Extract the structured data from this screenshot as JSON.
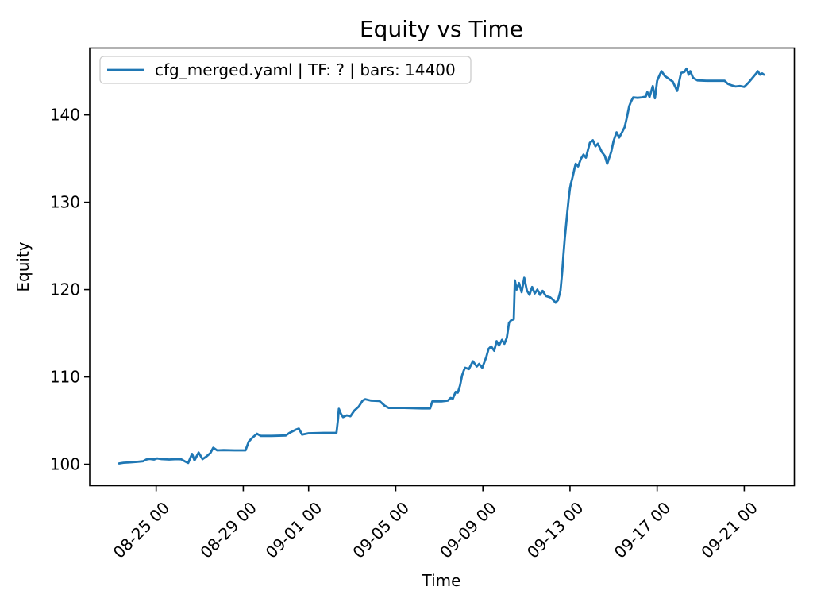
{
  "chart_data": {
    "type": "line",
    "title": "Equity vs Time",
    "xlabel": "Time",
    "ylabel": "Equity",
    "grid": false,
    "legend": {
      "position": "upper left",
      "entries": [
        {
          "label": "cfg_merged.yaml | TF: ? | bars: 14400",
          "color": "#1f77b4"
        }
      ]
    },
    "x_unit": "days since 08-25 00:00",
    "xlim": [
      -3.05,
      29.3
    ],
    "ylim": [
      97.55,
      147.65
    ],
    "yticks": [
      100,
      110,
      120,
      130,
      140
    ],
    "xticks": [
      {
        "t": 0,
        "label": "08-25 00"
      },
      {
        "t": 4,
        "label": "08-29 00"
      },
      {
        "t": 7,
        "label": "09-01 00"
      },
      {
        "t": 11,
        "label": "09-05 00"
      },
      {
        "t": 15,
        "label": "09-09 00"
      },
      {
        "t": 19,
        "label": "09-13 00"
      },
      {
        "t": 23,
        "label": "09-17 00"
      },
      {
        "t": 27,
        "label": "09-21 00"
      }
    ],
    "series": [
      {
        "name": "cfg_merged.yaml | TF: ? | bars: 14400",
        "color": "#1f77b4",
        "points": [
          [
            -1.7,
            100.1
          ],
          [
            -1.5,
            100.18
          ],
          [
            -1.2,
            100.22
          ],
          [
            -0.9,
            100.28
          ],
          [
            -0.6,
            100.35
          ],
          [
            -0.45,
            100.55
          ],
          [
            -0.3,
            100.62
          ],
          [
            -0.1,
            100.55
          ],
          [
            0.05,
            100.68
          ],
          [
            0.25,
            100.6
          ],
          [
            0.6,
            100.55
          ],
          [
            0.95,
            100.6
          ],
          [
            1.15,
            100.58
          ],
          [
            1.35,
            100.3
          ],
          [
            1.47,
            100.15
          ],
          [
            1.65,
            101.2
          ],
          [
            1.76,
            100.45
          ],
          [
            1.95,
            101.35
          ],
          [
            2.13,
            100.6
          ],
          [
            2.31,
            100.9
          ],
          [
            2.49,
            101.3
          ],
          [
            2.62,
            101.9
          ],
          [
            2.8,
            101.6
          ],
          [
            3.1,
            101.62
          ],
          [
            3.6,
            101.6
          ],
          [
            4.1,
            101.6
          ],
          [
            4.25,
            102.6
          ],
          [
            4.4,
            103.0
          ],
          [
            4.63,
            103.5
          ],
          [
            4.8,
            103.25
          ],
          [
            5.3,
            103.25
          ],
          [
            5.95,
            103.3
          ],
          [
            6.12,
            103.6
          ],
          [
            6.4,
            103.95
          ],
          [
            6.55,
            104.1
          ],
          [
            6.7,
            103.4
          ],
          [
            7.0,
            103.55
          ],
          [
            7.7,
            103.6
          ],
          [
            8.28,
            103.6
          ],
          [
            8.35,
            105.2
          ],
          [
            8.39,
            106.35
          ],
          [
            8.48,
            105.8
          ],
          [
            8.58,
            105.4
          ],
          [
            8.75,
            105.6
          ],
          [
            8.92,
            105.5
          ],
          [
            9.1,
            106.15
          ],
          [
            9.3,
            106.6
          ],
          [
            9.48,
            107.3
          ],
          [
            9.6,
            107.45
          ],
          [
            9.85,
            107.3
          ],
          [
            10.25,
            107.25
          ],
          [
            10.5,
            106.7
          ],
          [
            10.68,
            106.45
          ],
          [
            11.4,
            106.45
          ],
          [
            12.2,
            106.4
          ],
          [
            12.58,
            106.4
          ],
          [
            12.68,
            107.2
          ],
          [
            13.1,
            107.2
          ],
          [
            13.4,
            107.3
          ],
          [
            13.52,
            107.6
          ],
          [
            13.62,
            107.5
          ],
          [
            13.75,
            108.3
          ],
          [
            13.85,
            108.2
          ],
          [
            13.95,
            109.0
          ],
          [
            14.05,
            110.2
          ],
          [
            14.12,
            110.7
          ],
          [
            14.18,
            111.05
          ],
          [
            14.36,
            110.9
          ],
          [
            14.54,
            111.8
          ],
          [
            14.72,
            111.2
          ],
          [
            14.83,
            111.5
          ],
          [
            14.97,
            111.05
          ],
          [
            15.16,
            112.3
          ],
          [
            15.26,
            113.2
          ],
          [
            15.38,
            113.5
          ],
          [
            15.52,
            113.0
          ],
          [
            15.63,
            114.1
          ],
          [
            15.74,
            113.6
          ],
          [
            15.88,
            114.25
          ],
          [
            15.99,
            113.8
          ],
          [
            16.1,
            114.5
          ],
          [
            16.2,
            116.2
          ],
          [
            16.3,
            116.5
          ],
          [
            16.42,
            116.6
          ],
          [
            16.47,
            121.05
          ],
          [
            16.55,
            120.0
          ],
          [
            16.66,
            120.75
          ],
          [
            16.78,
            119.7
          ],
          [
            16.9,
            121.35
          ],
          [
            17.02,
            119.9
          ],
          [
            17.14,
            119.4
          ],
          [
            17.26,
            120.3
          ],
          [
            17.38,
            119.55
          ],
          [
            17.5,
            120.0
          ],
          [
            17.62,
            119.4
          ],
          [
            17.74,
            119.85
          ],
          [
            17.9,
            119.25
          ],
          [
            18.1,
            119.1
          ],
          [
            18.25,
            118.75
          ],
          [
            18.34,
            118.5
          ],
          [
            18.45,
            118.8
          ],
          [
            18.56,
            119.85
          ],
          [
            18.64,
            122.0
          ],
          [
            18.7,
            124.0
          ],
          [
            18.76,
            125.8
          ],
          [
            18.82,
            127.4
          ],
          [
            18.88,
            128.9
          ],
          [
            18.94,
            130.4
          ],
          [
            19.0,
            131.6
          ],
          [
            19.04,
            132.1
          ],
          [
            19.1,
            132.7
          ],
          [
            19.16,
            133.3
          ],
          [
            19.21,
            133.9
          ],
          [
            19.26,
            134.4
          ],
          [
            19.37,
            134.1
          ],
          [
            19.51,
            135.0
          ],
          [
            19.62,
            135.45
          ],
          [
            19.73,
            135.1
          ],
          [
            19.91,
            136.8
          ],
          [
            20.05,
            137.1
          ],
          [
            20.17,
            136.4
          ],
          [
            20.28,
            136.7
          ],
          [
            20.46,
            135.75
          ],
          [
            20.6,
            135.3
          ],
          [
            20.71,
            134.4
          ],
          [
            20.89,
            135.75
          ],
          [
            21.0,
            137.0
          ],
          [
            21.14,
            138.0
          ],
          [
            21.26,
            137.4
          ],
          [
            21.37,
            137.9
          ],
          [
            21.51,
            138.6
          ],
          [
            21.62,
            139.8
          ],
          [
            21.72,
            141.0
          ],
          [
            21.8,
            141.5
          ],
          [
            21.9,
            142.0
          ],
          [
            22.1,
            141.95
          ],
          [
            22.3,
            142.0
          ],
          [
            22.48,
            142.1
          ],
          [
            22.55,
            142.6
          ],
          [
            22.65,
            142.05
          ],
          [
            22.8,
            143.3
          ],
          [
            22.9,
            141.9
          ],
          [
            23.0,
            143.9
          ],
          [
            23.12,
            144.6
          ],
          [
            23.2,
            145.0
          ],
          [
            23.35,
            144.45
          ],
          [
            23.55,
            144.1
          ],
          [
            23.72,
            143.8
          ],
          [
            23.92,
            142.75
          ],
          [
            24.1,
            144.8
          ],
          [
            24.25,
            144.9
          ],
          [
            24.35,
            145.3
          ],
          [
            24.45,
            144.6
          ],
          [
            24.52,
            145.0
          ],
          [
            24.65,
            144.25
          ],
          [
            24.85,
            143.95
          ],
          [
            25.3,
            143.9
          ],
          [
            25.7,
            143.9
          ],
          [
            26.1,
            143.9
          ],
          [
            26.25,
            143.55
          ],
          [
            26.4,
            143.4
          ],
          [
            26.6,
            143.25
          ],
          [
            26.8,
            143.3
          ],
          [
            27.0,
            143.2
          ],
          [
            27.2,
            143.7
          ],
          [
            27.4,
            144.3
          ],
          [
            27.55,
            144.75
          ],
          [
            27.62,
            145.0
          ],
          [
            27.72,
            144.6
          ],
          [
            27.82,
            144.75
          ],
          [
            27.9,
            144.6
          ]
        ]
      }
    ]
  }
}
